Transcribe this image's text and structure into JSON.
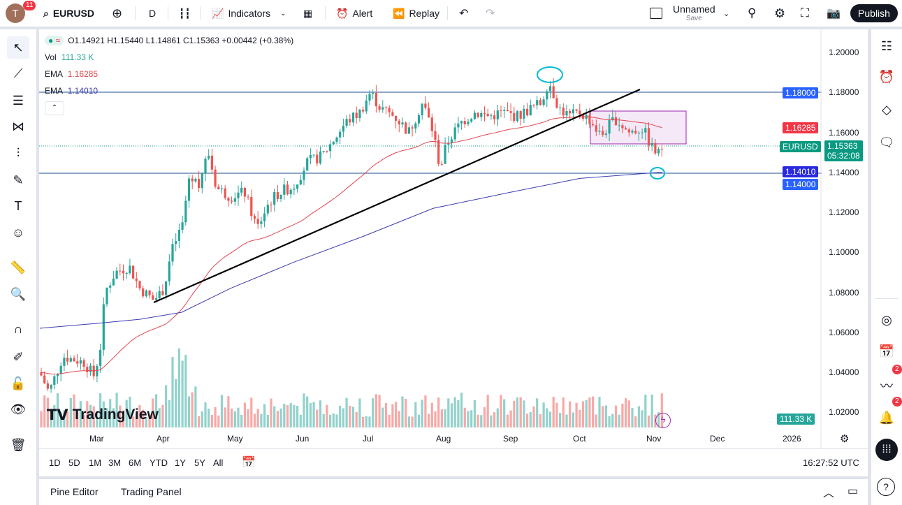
{
  "topbar": {
    "avatar_letter": "T",
    "avatar_badge": "11",
    "symbol": "EURUSD",
    "interval": "D",
    "indicators": "Indicators",
    "alert": "Alert",
    "replay": "Replay",
    "layout_name": "Unnamed",
    "layout_save": "Save",
    "publish": "Publish"
  },
  "legend": {
    "ohlc": "O1.14921 H1.15440 L1.14861 C1.15363 +0.00442 (+0.38%)",
    "vol_label": "Vol",
    "vol_value": "111.33 K",
    "ema1_label": "EMA",
    "ema1_value": "1.16285",
    "ema2_label": "EMA",
    "ema2_value": "1.14010"
  },
  "price_axis": {
    "ticks": [
      "1.20000",
      "1.18000",
      "1.16000",
      "1.14000",
      "1.12000",
      "1.10000",
      "1.08000",
      "1.06000",
      "1.04000",
      "1.02000"
    ],
    "label_1180": "1.18000",
    "label_ema1": "1.16285",
    "label_symbol": "EURUSD",
    "label_price": "1.15363",
    "label_countdown": "05:32:08",
    "label_ema2": "1.14010",
    "label_1140": "1.14000",
    "label_vol": "111.33 K"
  },
  "time_axis": {
    "ticks": [
      "Mar",
      "Apr",
      "May",
      "Jun",
      "Jul",
      "Aug",
      "Sep",
      "Oct",
      "Nov",
      "Dec",
      "2026"
    ]
  },
  "timeframes": [
    "1D",
    "5D",
    "1M",
    "3M",
    "6M",
    "YTD",
    "1Y",
    "5Y",
    "All"
  ],
  "clock": "16:27:52 UTC",
  "bottom": {
    "pine": "Pine Editor",
    "trading": "Trading Panel"
  },
  "logo": "TradingView",
  "right_badges": {
    "ideas": "2",
    "alerts": "2"
  },
  "colors": {
    "up": "#26a69a",
    "down": "#ef5350",
    "ema_fast": "#e0474f",
    "ema_slow": "#3b3bb3",
    "line_blue": "#2962ff",
    "accent": "#131722"
  }
}
